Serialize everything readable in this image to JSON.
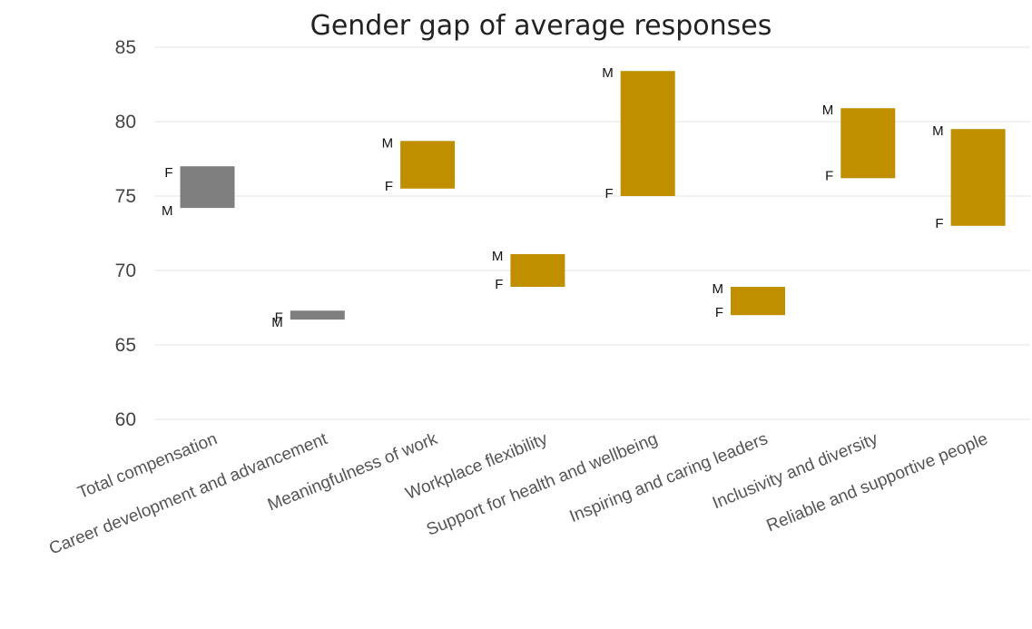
{
  "chart_data": {
    "type": "floating-bar",
    "title": "Gender gap of average responses",
    "xlabel": "",
    "ylabel": "",
    "ylim": [
      60,
      85
    ],
    "yticks": [
      60,
      65,
      70,
      75,
      80,
      85
    ],
    "grid": true,
    "legend": "none",
    "categories": [
      "Total compensation",
      "Career development and advancement",
      "Meaningfulness of work",
      "Workplace flexibility",
      "Support for health and wellbeing",
      "Inspiring and caring leaders",
      "Inclusivity and diversity",
      "Reliable and supportive people"
    ],
    "series": [
      {
        "name": "F",
        "values": [
          77.0,
          67.3,
          75.5,
          68.9,
          75.0,
          67.0,
          76.2,
          73.0
        ]
      },
      {
        "name": "M",
        "values": [
          74.2,
          66.7,
          78.7,
          71.1,
          83.4,
          68.9,
          80.9,
          79.5
        ]
      }
    ],
    "colors": {
      "female_higher": "#7f7f7f",
      "male_higher": "#bf8f00"
    }
  }
}
